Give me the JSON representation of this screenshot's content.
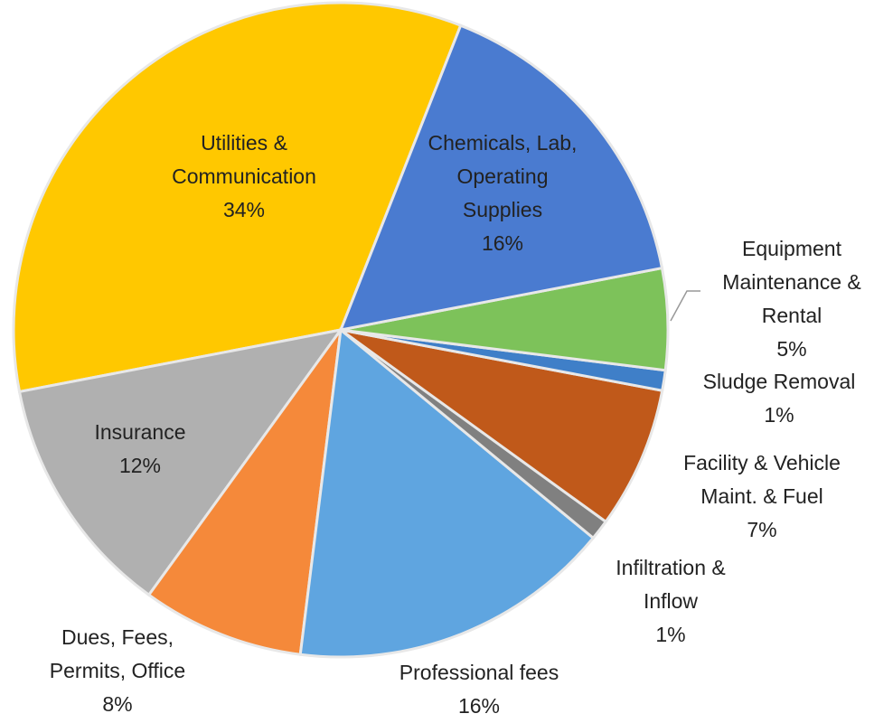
{
  "chart_data": {
    "type": "pie",
    "categories": [
      "Chemicals, Lab, Operating Supplies",
      "Equipment Maintenance & Rental",
      "Sludge Removal",
      "Facility & Vehicle Maint. & Fuel",
      "Infiltration & Inflow",
      "Professional fees",
      "Dues, Fees, Permits, Office",
      "Insurance",
      "Utilities & Communication"
    ],
    "values": [
      16,
      5,
      1,
      7,
      1,
      16,
      8,
      12,
      34
    ],
    "value_labels": [
      "16%",
      "5%",
      "1%",
      "7%",
      "1%",
      "16%",
      "8%",
      "12%",
      "34%"
    ],
    "colors": [
      "#4a7bd0",
      "#7dc25a",
      "#3f7fc8",
      "#c0591a",
      "#808080",
      "#5fa5e0",
      "#f5893a",
      "#b0b0b0",
      "#ffc800"
    ]
  }
}
